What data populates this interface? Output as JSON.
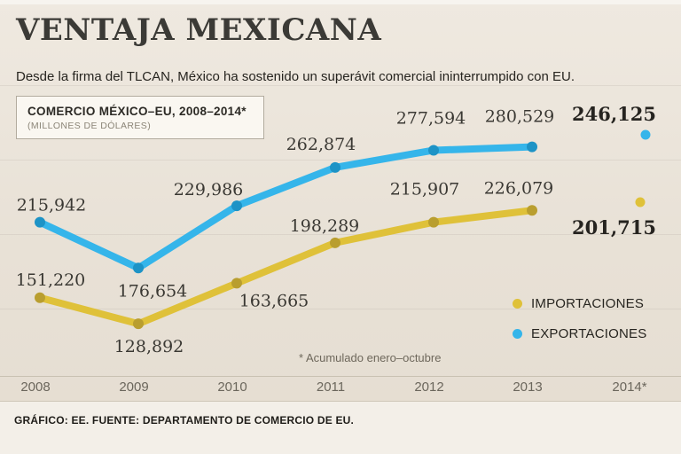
{
  "header": {
    "title": "VENTAJA MEXICANA",
    "subtitle": "Desde la firma del TLCAN, México ha sostenido un superávit comercial ininterrumpido con EU."
  },
  "footnote": "* Acumulado enero–octubre",
  "credit": "GRÁFICO: EE. FUENTE: DEPARTAMENTO DE COMERCIO DE EU.",
  "chart_data": {
    "type": "line",
    "title": "COMERCIO MÉXICO–EU, 2008–2014*",
    "subtitle": "(MILLONES DE DÓLARES)",
    "categories": [
      "2008",
      "2009",
      "2010",
      "2011",
      "2012",
      "2013",
      "2014*"
    ],
    "series": [
      {
        "name": "EXPORTACIONES",
        "color": "#35b5ea",
        "values": [
          215942,
          176654,
          229986,
          262874,
          277594,
          280529,
          246125
        ]
      },
      {
        "name": "IMPORTACIONES",
        "color": "#dfc139",
        "values": [
          151220,
          128892,
          163665,
          198289,
          215907,
          226079,
          201715
        ]
      }
    ],
    "ylim": [
      110000,
      300000
    ],
    "grid": "subtle-horizontal",
    "legend_position": "right-middle",
    "note": "2014* values shown as isolated highlighted points"
  }
}
